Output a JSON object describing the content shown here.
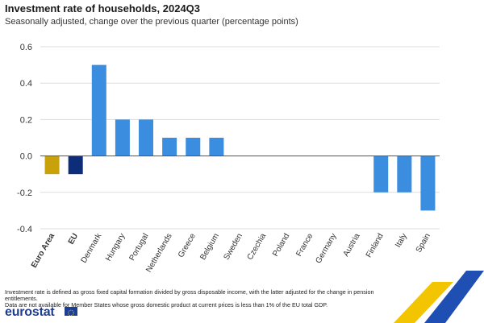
{
  "header": {
    "title": "Investment rate of households, 2024Q3",
    "subtitle": "Seasonally adjusted, change over the previous quarter (percentage points)"
  },
  "footnote": {
    "line1": "Investment rate is defined as gross fixed capital formation divided by gross disposable income, with the latter adjusted for the change in pension entitlements.",
    "line2": "Data are not available for Member States whose gross domestic product at current prices is less than 1% of the EU total GDP."
  },
  "brand": {
    "logo_text": "eurostat",
    "flag_color": "#1c3f94"
  },
  "colors": {
    "euro_area": "#c9a10a",
    "eu": "#0d2d7a",
    "country": "#3b8de0",
    "gridline": "#dddddd",
    "zero_line": "#555555",
    "decor_yellow": "#f2c500",
    "decor_blue": "#1f4fb3"
  },
  "chart_data": {
    "type": "bar",
    "title": "Investment rate of households, 2024Q3",
    "subtitle": "Seasonally adjusted, change over the previous quarter (percentage points)",
    "xlabel": "",
    "ylabel": "",
    "ylim": [
      -0.4,
      0.6
    ],
    "yticks": [
      0.6,
      0.4,
      0.2,
      0.0,
      -0.2,
      -0.4
    ],
    "ytick_labels": [
      "0.6",
      "0.4",
      "0.2",
      "0.0",
      "-0.2",
      "-0.4"
    ],
    "grid": true,
    "legend": "none",
    "categories": [
      "Euro Area",
      "EU",
      "Denmark",
      "Hungary",
      "Portugal",
      "Netherlands",
      "Greece",
      "Belgium",
      "Sweden",
      "Czechia",
      "Poland",
      "France",
      "Germany",
      "Austria",
      "Finland",
      "Italy",
      "Spain"
    ],
    "values": [
      -0.1,
      -0.1,
      0.5,
      0.2,
      0.2,
      0.1,
      0.1,
      0.1,
      0.0,
      0.0,
      0.0,
      0.0,
      0.0,
      0.0,
      -0.2,
      -0.2,
      -0.3
    ],
    "bold_categories": [
      "Euro Area",
      "EU"
    ],
    "bar_colors": [
      "euro_area",
      "eu",
      "country",
      "country",
      "country",
      "country",
      "country",
      "country",
      "country",
      "country",
      "country",
      "country",
      "country",
      "country",
      "country",
      "country",
      "country"
    ]
  }
}
